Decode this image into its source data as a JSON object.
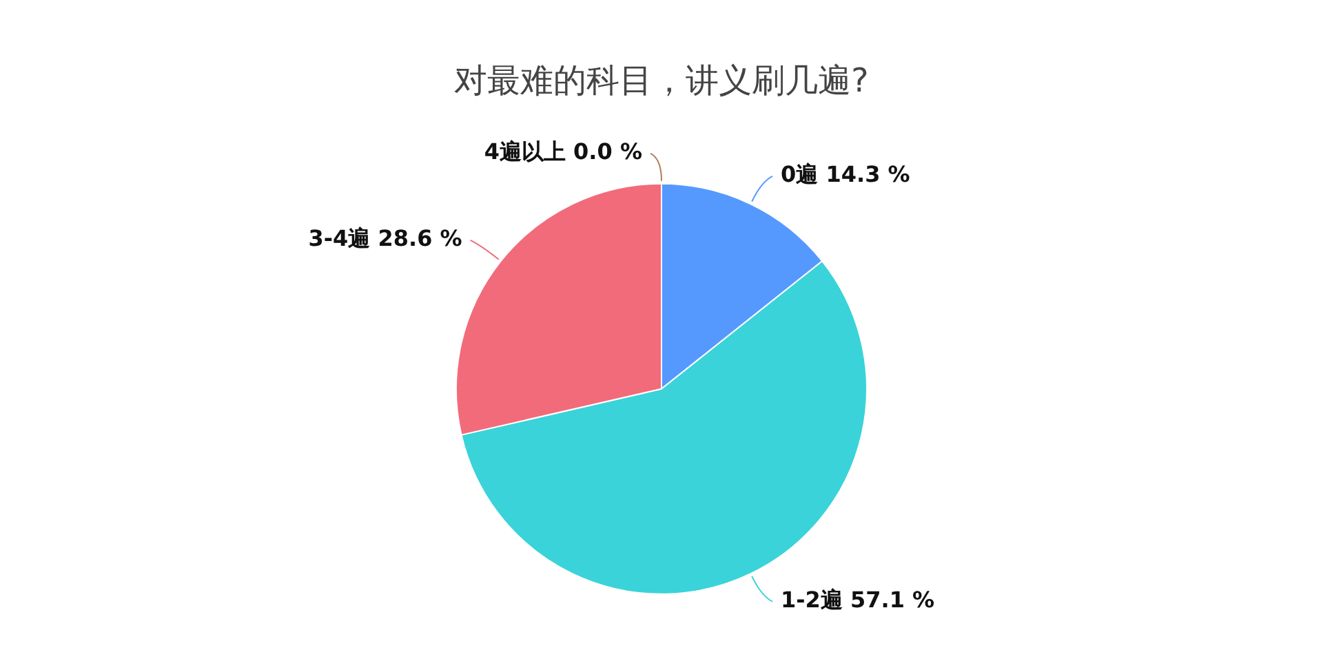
{
  "chart_data": {
    "type": "pie",
    "title": "对最难的科目，讲义刷几遍?",
    "categories": [
      "0遍",
      "1-2遍",
      "3-4遍",
      "4遍以上"
    ],
    "values": [
      14.3,
      57.1,
      28.6,
      0.0
    ],
    "colors": [
      "#5599ff",
      "#3ad3d9",
      "#f26b7a",
      "#b07d5b"
    ],
    "value_labels": [
      "14.3 %",
      "57.1 %",
      "28.6 %",
      "0.0 %"
    ],
    "legend": false
  }
}
